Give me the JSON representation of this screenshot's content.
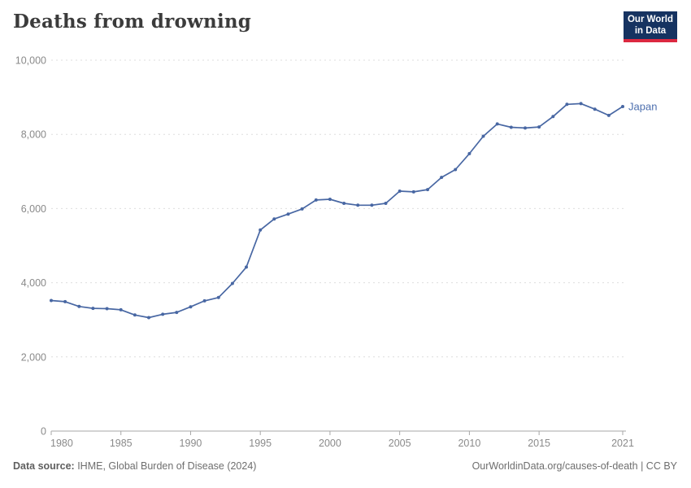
{
  "header": {
    "title": "Deaths from drowning",
    "logo": {
      "line1": "Our World",
      "line2": "in Data"
    }
  },
  "footer": {
    "source_label": "Data source:",
    "source_text": " IHME, Global Burden of Disease (2024)",
    "citation": "OurWorldinData.org/causes-of-death | CC BY"
  },
  "chart_data": {
    "type": "line",
    "title": "Deaths from drowning",
    "xlabel": "",
    "ylabel": "",
    "xlim": [
      1980,
      2021
    ],
    "ylim": [
      0,
      10000
    ],
    "xticks": [
      1980,
      1985,
      1990,
      1995,
      2000,
      2005,
      2010,
      2015,
      2021
    ],
    "yticks": [
      0,
      2000,
      4000,
      6000,
      8000,
      10000
    ],
    "grid": "horizontal-dashed",
    "legend_position": "end-of-line-label",
    "x": [
      1980,
      1981,
      1982,
      1983,
      1984,
      1985,
      1986,
      1987,
      1988,
      1989,
      1990,
      1991,
      1992,
      1993,
      1994,
      1995,
      1996,
      1997,
      1998,
      1999,
      2000,
      2001,
      2002,
      2003,
      2004,
      2005,
      2006,
      2007,
      2008,
      2009,
      2010,
      2011,
      2012,
      2013,
      2014,
      2015,
      2016,
      2017,
      2018,
      2019,
      2020,
      2021
    ],
    "series": [
      {
        "name": "Japan",
        "values": [
          3520,
          3490,
          3360,
          3310,
          3300,
          3270,
          3130,
          3060,
          3150,
          3200,
          3350,
          3510,
          3600,
          3980,
          4420,
          5420,
          5720,
          5850,
          5990,
          6230,
          6250,
          6140,
          6090,
          6090,
          6140,
          6470,
          6450,
          6510,
          6840,
          7050,
          7480,
          7950,
          8280,
          8190,
          8170,
          8200,
          8480,
          8810,
          8830,
          8680,
          8510,
          8750
        ]
      }
    ],
    "colors": {
      "line": "#4867a3",
      "entity_label": "#4d6fae",
      "grid": "#dedede",
      "axis": "#a7a7a7",
      "tick_label": "#8a8a8a"
    }
  }
}
